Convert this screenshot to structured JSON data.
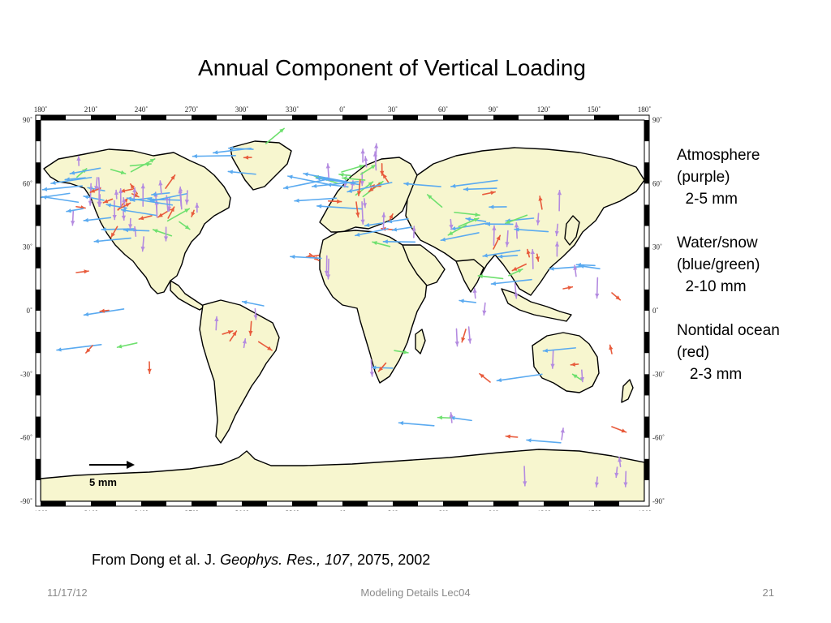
{
  "slide": {
    "title": "Annual Component of  Vertical Loading",
    "footer_date": "11/17/12",
    "footer_center": "Modeling Details Lec04",
    "page_number": "21"
  },
  "citation": {
    "prefix": "From Dong et al. J. ",
    "journal": "Geophys. Res., 107",
    "suffix": ", 2075, 2002"
  },
  "legend": [
    {
      "lines": [
        "Atmosphere",
        "(purple)",
        "  2-5 mm"
      ],
      "color": "#b48be0"
    },
    {
      "lines": [
        "Water/snow",
        "(blue/green)",
        "  2-10 mm"
      ],
      "color": "#5aaaf0"
    },
    {
      "lines": [
        "Nontidal ocean",
        "(red)",
        "   2-3 mm"
      ],
      "color": "#e85b3c"
    }
  ],
  "map": {
    "lon_ticks": [
      "180˚",
      "210˚",
      "240˚",
      "270˚",
      "300˚",
      "330˚",
      "0˚",
      "30˚",
      "60˚",
      "90˚",
      "120˚",
      "150˚",
      "180˚"
    ],
    "lat_ticks_left": [
      "90˚",
      "60˚",
      "30˚",
      "0˚",
      "-30˚",
      "-60˚",
      "-90˚"
    ],
    "lat_ticks_right": [
      "90˚",
      "60˚",
      "30˚",
      "0˚",
      "-30˚",
      "-60˚",
      "-90˚"
    ],
    "scale_label": "5 mm",
    "colors": {
      "land": "#f7f6cf",
      "coast": "#000000",
      "atmosphere": "#b48be0",
      "water": "#5aaaf0",
      "snow": "#6ee06e",
      "ocean": "#e85b3c"
    }
  }
}
